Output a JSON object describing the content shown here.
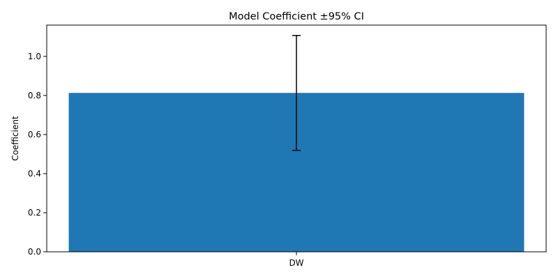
{
  "chart_data": {
    "type": "bar",
    "title": "Model Coefficient ±95% CI",
    "xlabel": "",
    "ylabel": "Coefficient",
    "categories": [
      "DW"
    ],
    "values": [
      0.813
    ],
    "error_low": [
      0.519
    ],
    "error_high": [
      1.107
    ],
    "ylim": [
      0,
      1.16
    ],
    "yticks": [
      "0.0",
      "0.2",
      "0.4",
      "0.6",
      "0.8",
      "1.0"
    ],
    "grid": false,
    "bar_color": "#1f77b4",
    "errorbar_color": "#000000"
  }
}
